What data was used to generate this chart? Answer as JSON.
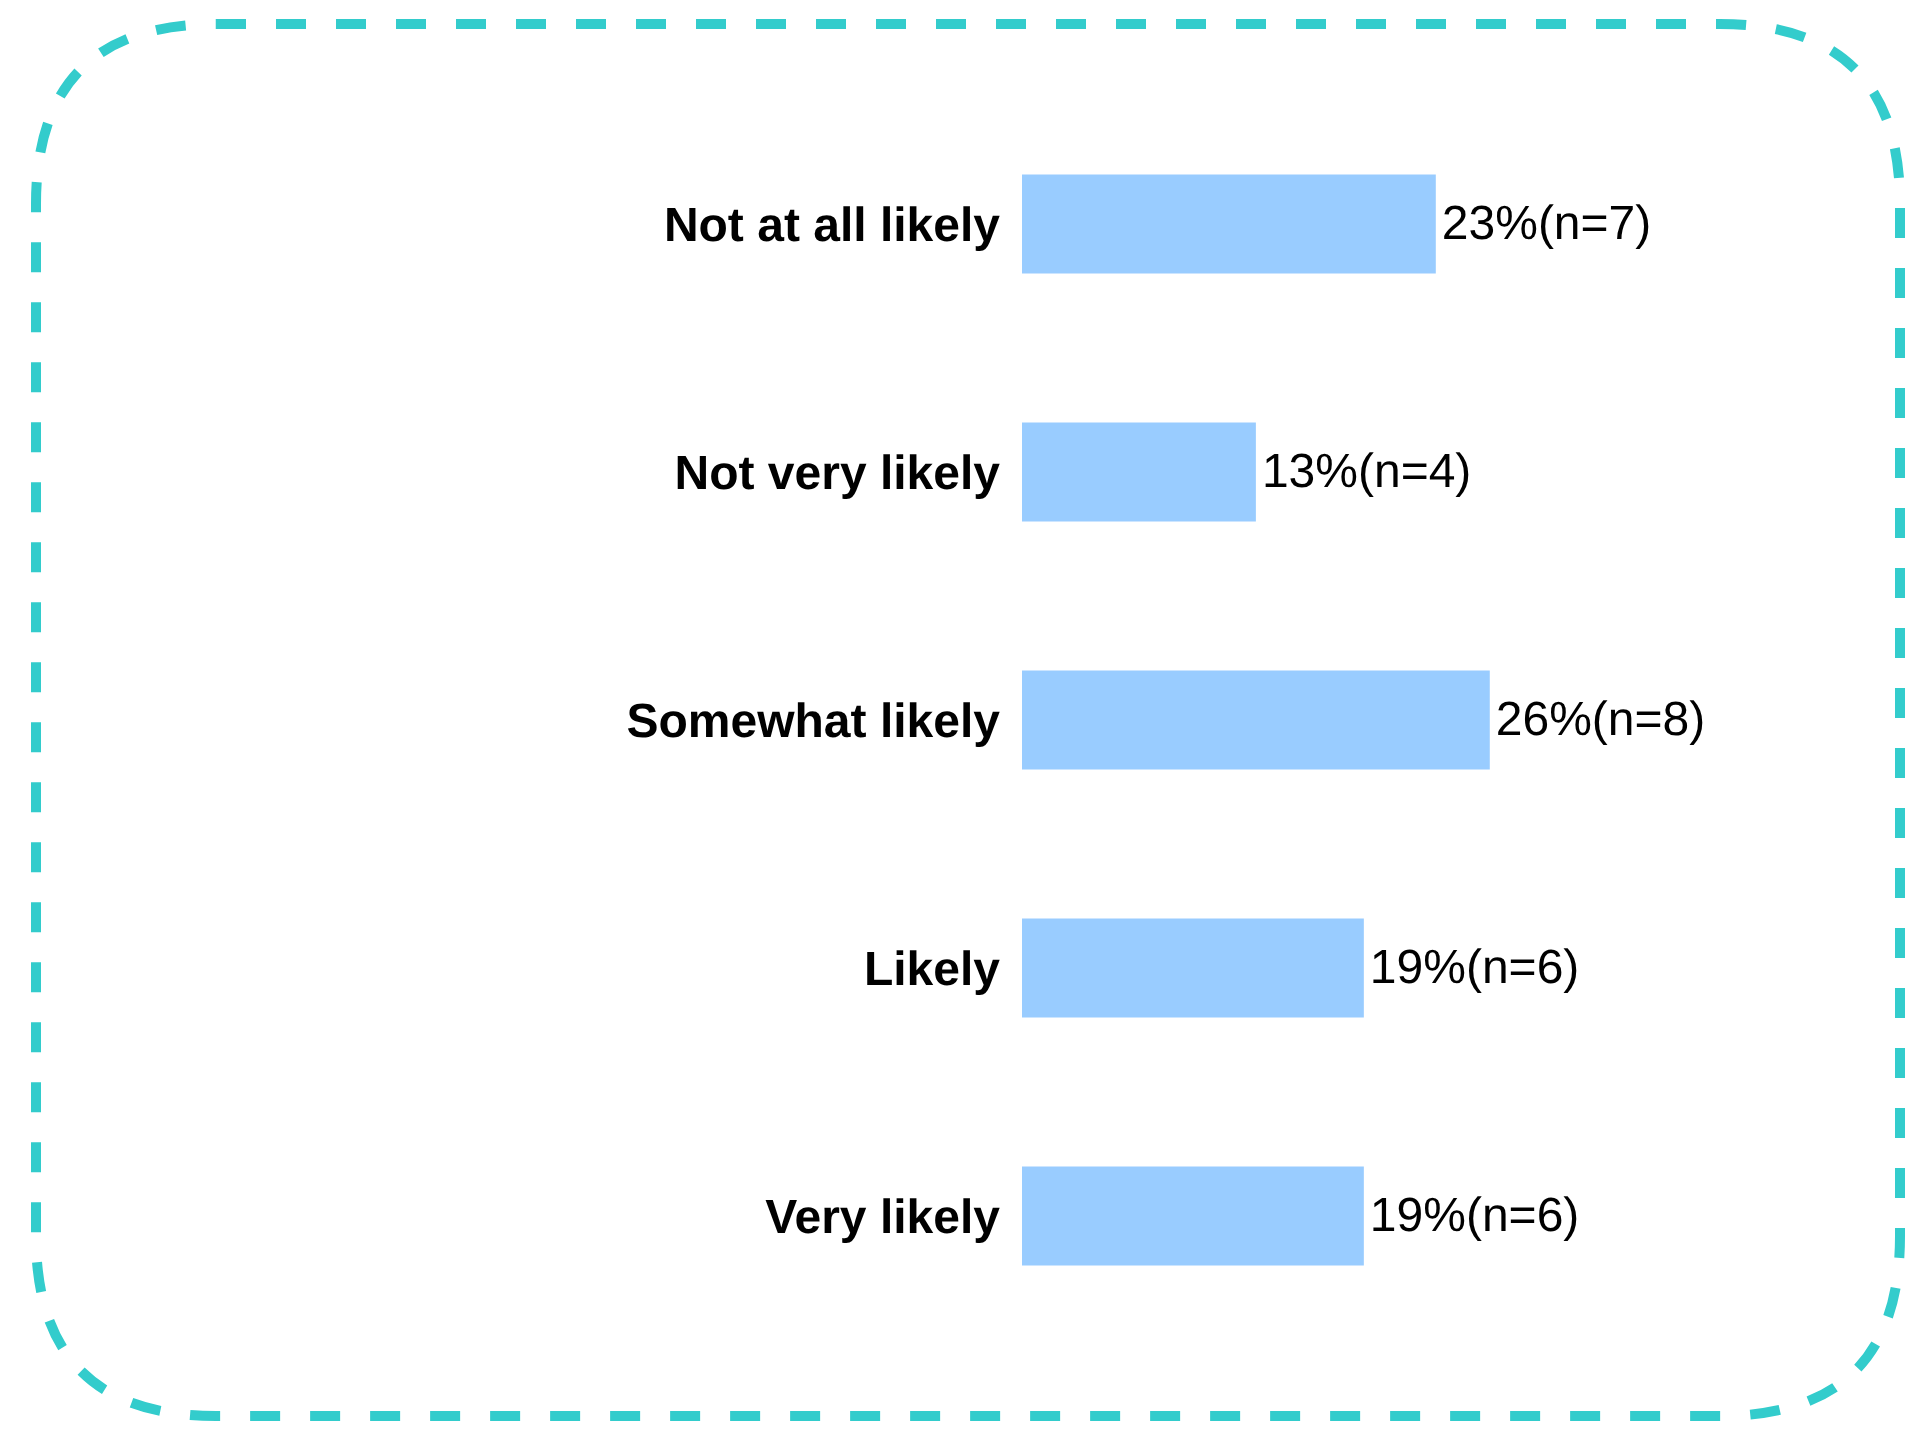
{
  "chart_data": {
    "type": "bar",
    "orientation": "horizontal",
    "categories": [
      "Not at all likely",
      "Not very likely",
      "Somewhat likely",
      "Likely",
      "Very likely"
    ],
    "values": [
      23,
      13,
      26,
      19,
      19
    ],
    "value_labels": [
      "23%(n=7)",
      "13%(n=4)",
      "26%(n=8)",
      "19%(n=6)",
      "19%(n=6)"
    ],
    "color": "#99ccff",
    "tick_labels": "y"
  }
}
